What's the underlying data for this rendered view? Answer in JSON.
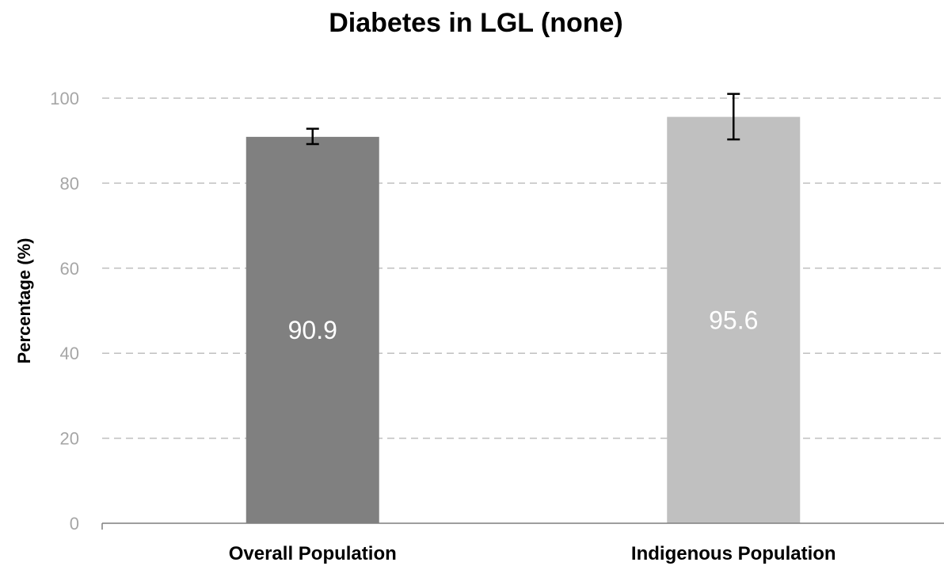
{
  "chart_data": {
    "type": "bar",
    "title": "Diabetes in LGL (none)",
    "ylabel": "Percentage (%)",
    "xlabel": "",
    "categories": [
      "Overall Population",
      "Indigenous Population"
    ],
    "values": [
      90.9,
      95.6
    ],
    "data_labels": [
      "90.9",
      "95.6"
    ],
    "error_bars": [
      {
        "low": 89.2,
        "high": 92.8
      },
      {
        "low": 90.3,
        "high": 101.0
      }
    ],
    "colors": [
      "#808080",
      "#c0c0c0"
    ],
    "ylim": [
      0,
      100
    ],
    "yticks": [
      0,
      20,
      40,
      60,
      80,
      100
    ],
    "grid": true,
    "legend": "none"
  }
}
